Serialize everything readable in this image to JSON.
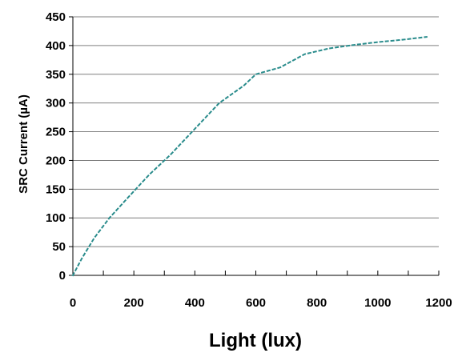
{
  "chart_data": {
    "type": "line",
    "title": "",
    "xlabel": "Light (lux)",
    "ylabel": "SRC Current (µA)",
    "xlim": [
      0,
      1200
    ],
    "ylim": [
      0,
      450
    ],
    "x_ticks": [
      0,
      200,
      400,
      600,
      800,
      1000,
      1200
    ],
    "y_ticks": [
      0,
      50,
      100,
      150,
      200,
      250,
      300,
      350,
      400,
      450
    ],
    "grid": true,
    "legend": "none",
    "colors": {
      "series": "#2a8c8c",
      "grid": "#7f7f7f",
      "axis": "#000000"
    },
    "series": [
      {
        "x": [
          0,
          30,
          70,
          120,
          180,
          250,
          320,
          400,
          480,
          560,
          600,
          680,
          760,
          840,
          920,
          1000,
          1080,
          1160
        ],
        "values": [
          0,
          30,
          65,
          100,
          135,
          175,
          210,
          255,
          300,
          330,
          350,
          362,
          385,
          395,
          401,
          406,
          410,
          415
        ]
      }
    ]
  }
}
